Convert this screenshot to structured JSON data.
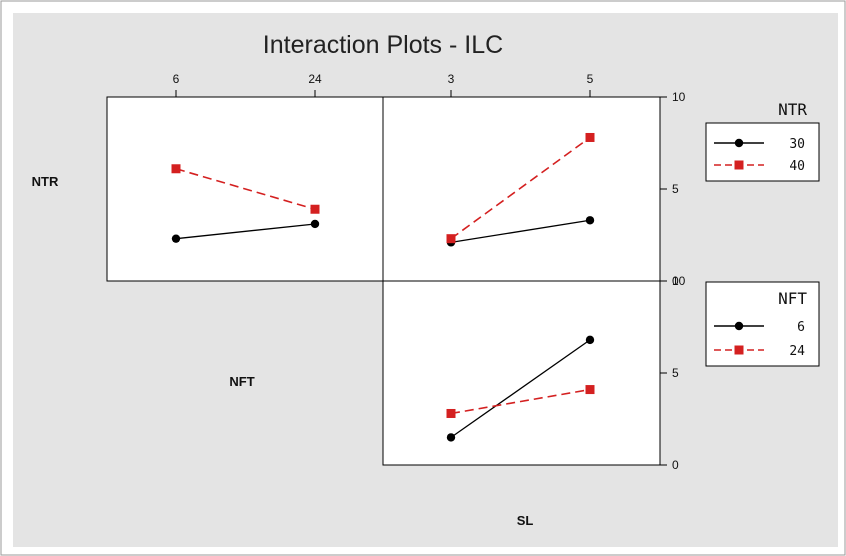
{
  "chart_data": {
    "type": "line",
    "title": "Interaction Plots - ILC",
    "right_axis": {
      "ticks_top_panel": [
        "10",
        "5",
        "0"
      ],
      "ticks_bottom_panel": [
        "10",
        "5",
        "0"
      ],
      "range": [
        0,
        10
      ]
    },
    "factors": {
      "NTR": {
        "label": "NTR",
        "levels": [
          "30",
          "40"
        ]
      },
      "NFT": {
        "label": "NFT",
        "levels": [
          "6",
          "24"
        ],
        "top_ticks": [
          "6",
          "24"
        ]
      },
      "SL": {
        "label": "SL",
        "levels": [
          "3",
          "5"
        ],
        "top_ticks": [
          "3",
          "5"
        ]
      }
    },
    "panels": [
      {
        "id": "NTR-by-NFT",
        "x_factor": "NFT",
        "trace_factor": "NTR",
        "categories": [
          "6",
          "24"
        ],
        "series": [
          {
            "name": "30",
            "values": [
              2.3,
              3.1
            ],
            "color": "#000000",
            "marker": "circle",
            "line": "solid"
          },
          {
            "name": "40",
            "values": [
              6.1,
              3.9
            ],
            "color": "#d42020",
            "marker": "square",
            "line": "dashed"
          }
        ]
      },
      {
        "id": "NTR-by-SL",
        "x_factor": "SL",
        "trace_factor": "NTR",
        "categories": [
          "3",
          "5"
        ],
        "series": [
          {
            "name": "30",
            "values": [
              2.1,
              3.3
            ],
            "color": "#000000",
            "marker": "circle",
            "line": "solid"
          },
          {
            "name": "40",
            "values": [
              2.3,
              7.8
            ],
            "color": "#d42020",
            "marker": "square",
            "line": "dashed"
          }
        ]
      },
      {
        "id": "NFT-by-SL",
        "x_factor": "SL",
        "trace_factor": "NFT",
        "categories": [
          "3",
          "5"
        ],
        "series": [
          {
            "name": "6",
            "values": [
              1.5,
              6.8
            ],
            "color": "#000000",
            "marker": "circle",
            "line": "solid"
          },
          {
            "name": "24",
            "values": [
              2.8,
              4.1
            ],
            "color": "#d42020",
            "marker": "square",
            "line": "dashed"
          }
        ]
      }
    ],
    "legends": [
      {
        "title": "NTR",
        "items": [
          {
            "label": "30",
            "color": "#000000",
            "marker": "circle",
            "line": "solid"
          },
          {
            "label": "40",
            "color": "#d42020",
            "marker": "square",
            "line": "dashed"
          }
        ]
      },
      {
        "title": "NFT",
        "items": [
          {
            "label": "6",
            "color": "#000000",
            "marker": "circle",
            "line": "solid"
          },
          {
            "label": "24",
            "color": "#d42020",
            "marker": "square",
            "line": "dashed"
          }
        ]
      }
    ],
    "background": "#e4e4e4",
    "panel_background": "#ffffff",
    "grid": false
  }
}
